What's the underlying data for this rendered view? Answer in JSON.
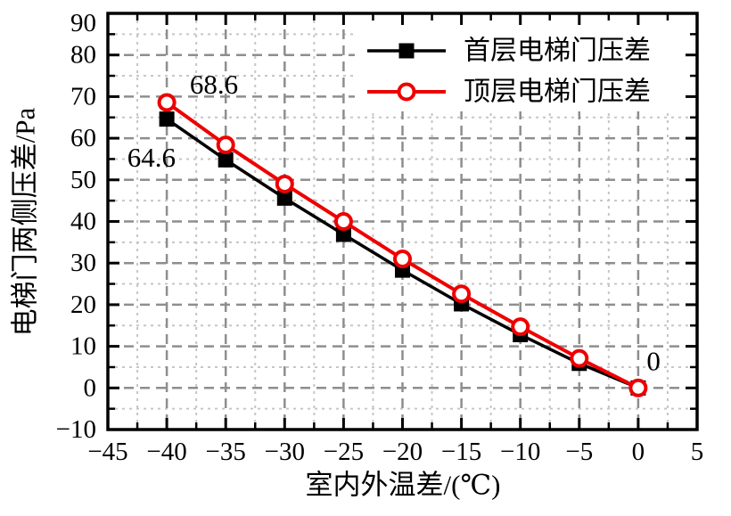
{
  "figure": {
    "background": "#ffffff"
  },
  "chart_data": {
    "type": "line",
    "title": "",
    "xlabel": "室内外温差/(℃)",
    "ylabel": "电梯门两侧压差/Pa",
    "xlim": [
      -45,
      5
    ],
    "ylim": [
      -10,
      90
    ],
    "x_tick_step": 5,
    "x_minor_step": 2.5,
    "y_tick_step": 10,
    "y_minor_step": 5,
    "grid": "major and minor dashed gridlines",
    "legend_position": "inside top-right",
    "x": [
      -40,
      -35,
      -30,
      -25,
      -20,
      -15,
      -10,
      -5,
      0
    ],
    "series": [
      {
        "name": "首层电梯门压差",
        "color": "#000000",
        "marker": "filled-square",
        "values": [
          64.6,
          54.8,
          45.6,
          36.9,
          28.3,
          20.2,
          12.8,
          5.9,
          0
        ]
      },
      {
        "name": "顶层电梯门压差",
        "color": "#ee0000",
        "marker": "open-circle",
        "values": [
          68.6,
          58.4,
          49.0,
          40.0,
          31.0,
          22.6,
          14.7,
          7.1,
          0
        ]
      }
    ],
    "annotations": [
      {
        "text": "68.6",
        "x": -36.0,
        "y": 73.0
      },
      {
        "text": "64.6",
        "x": -41.3,
        "y": 55.4
      },
      {
        "text": "0",
        "x": 1.3,
        "y": 6.5
      }
    ],
    "colors": {
      "frame": "#000000",
      "grid_major": "#8e8e8e",
      "grid_minor": "#c6c6c6",
      "series_first_floor": "#000000",
      "series_top_floor": "#ee0000",
      "legend_background": "#ffffff"
    }
  }
}
